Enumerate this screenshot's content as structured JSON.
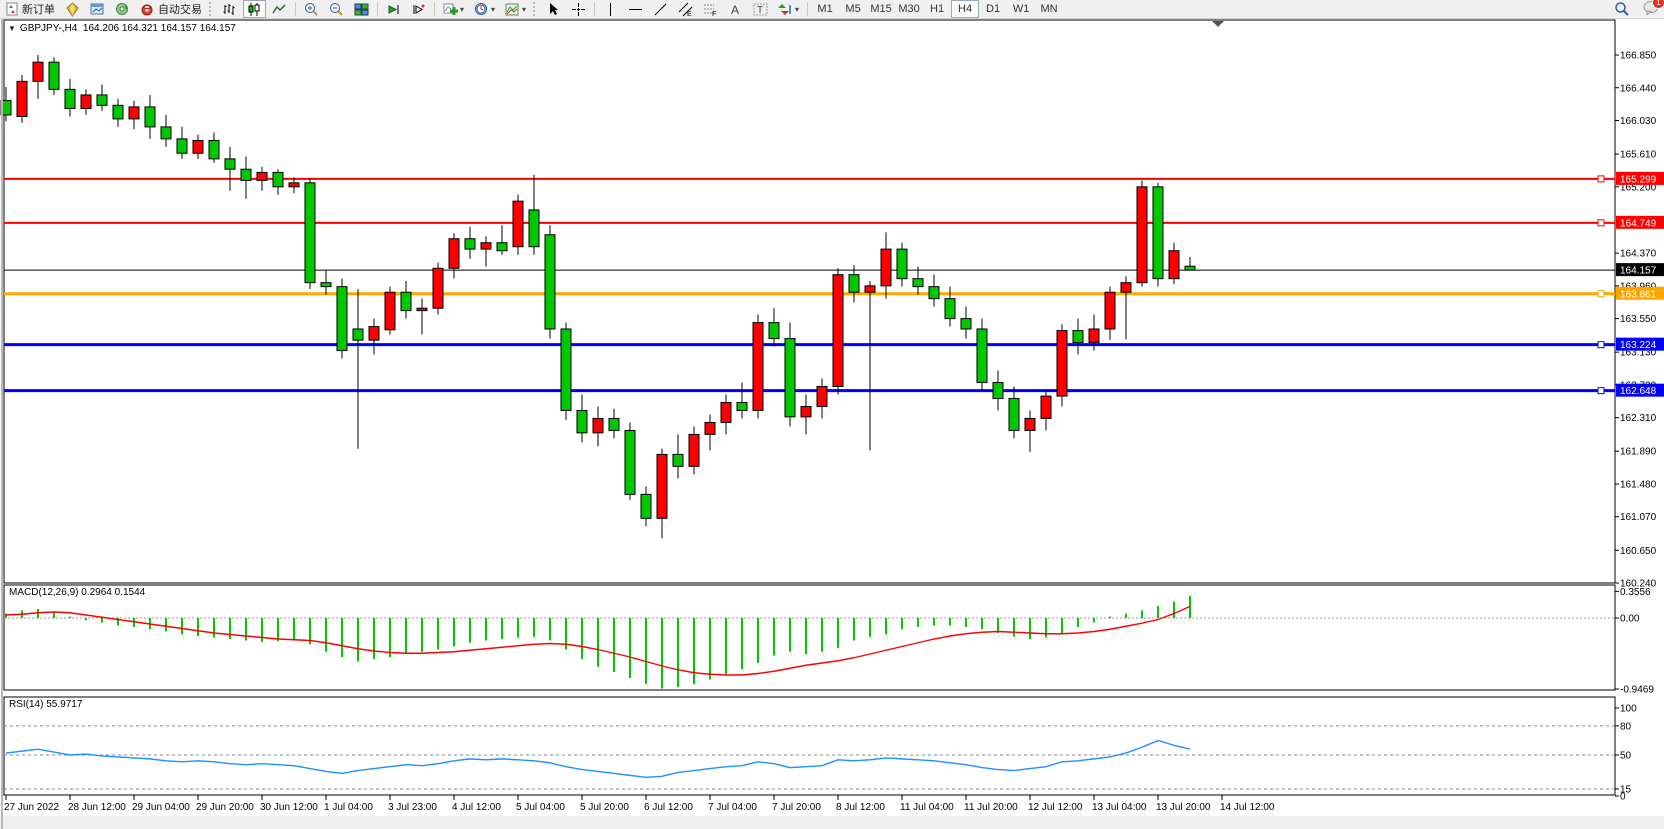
{
  "toolbar": {
    "new_order": "新订单",
    "autotrading": "自动交易",
    "timeframes": [
      "M1",
      "M5",
      "M15",
      "M30",
      "H1",
      "H4",
      "D1",
      "W1",
      "MN"
    ],
    "active_timeframe": "H4",
    "chat_badge": "1"
  },
  "chart": {
    "symbol_line": "GBPJPY-,H4",
    "ohlc_line": "164.206 164.321 164.157 164.157"
  },
  "chart_data": {
    "type": "candlestick",
    "symbol": "GBPJPY-",
    "timeframe": "H4",
    "ohlc_current": {
      "open": 164.206,
      "high": 164.321,
      "low": 164.157,
      "close": 164.157
    },
    "colors": {
      "bull": "#ff0000",
      "bear": "#00c800",
      "wick": "#000000",
      "macd_histogram": "#00c800",
      "macd_signal": "#ff0000",
      "rsi_line": "#1e90ff"
    },
    "price_ticks": [
      "166.850",
      "166.440",
      "166.030",
      "165.610",
      "165.200",
      "164.370",
      "163.960",
      "163.550",
      "163.130",
      "162.720",
      "162.310",
      "161.890",
      "161.480",
      "161.070",
      "160.650",
      "160.240"
    ],
    "time_labels": [
      "27 Jun 2022",
      "28 Jun 12:00",
      "29 Jun 04:00",
      "29 Jun 20:00",
      "30 Jun 12:00",
      "1 Jul 04:00",
      "3 Jul 23:00",
      "4 Jul 12:00",
      "5 Jul 04:00",
      "5 Jul 20:00",
      "6 Jul 12:00",
      "7 Jul 04:00",
      "7 Jul 20:00",
      "8 Jul 12:00",
      "11 Jul 04:00",
      "11 Jul 20:00",
      "12 Jul 12:00",
      "13 Jul 04:00",
      "13 Jul 20:00",
      "14 Jul 12:00"
    ],
    "hlines": [
      {
        "price": 165.299,
        "label": "165.299",
        "color": "#ff0000",
        "width": 2
      },
      {
        "price": 164.749,
        "label": "164.749",
        "color": "#ff0000",
        "width": 2
      },
      {
        "price": 164.157,
        "label": "164.157",
        "color": "#000000",
        "width": 1
      },
      {
        "price": 163.861,
        "label": "163.861",
        "color": "#ffa500",
        "width": 3
      },
      {
        "price": 163.224,
        "label": "163.224",
        "color": "#0000ff",
        "width": 3
      },
      {
        "price": 162.648,
        "label": "162.648",
        "color": "#0000ff",
        "width": 3
      }
    ],
    "bars": [
      [
        166.28,
        166.45,
        166.02,
        166.1
      ],
      [
        166.08,
        166.6,
        166.0,
        166.52
      ],
      [
        166.52,
        166.85,
        166.3,
        166.76
      ],
      [
        166.76,
        166.82,
        166.35,
        166.42
      ],
      [
        166.42,
        166.55,
        166.08,
        166.18
      ],
      [
        166.18,
        166.42,
        166.1,
        166.35
      ],
      [
        166.35,
        166.48,
        166.15,
        166.22
      ],
      [
        166.22,
        166.3,
        165.95,
        166.05
      ],
      [
        166.05,
        166.28,
        165.92,
        166.2
      ],
      [
        166.2,
        166.35,
        165.8,
        165.95
      ],
      [
        165.95,
        166.1,
        165.7,
        165.8
      ],
      [
        165.8,
        165.95,
        165.55,
        165.62
      ],
      [
        165.62,
        165.85,
        165.55,
        165.78
      ],
      [
        165.78,
        165.88,
        165.5,
        165.55
      ],
      [
        165.55,
        165.7,
        165.15,
        165.42
      ],
      [
        165.42,
        165.58,
        165.05,
        165.28
      ],
      [
        165.28,
        165.45,
        165.15,
        165.38
      ],
      [
        165.38,
        165.42,
        165.1,
        165.2
      ],
      [
        165.2,
        165.32,
        165.12,
        165.25
      ],
      [
        165.25,
        165.3,
        163.92,
        164.0
      ],
      [
        164.0,
        164.15,
        163.85,
        163.95
      ],
      [
        163.95,
        164.05,
        163.05,
        163.15
      ],
      [
        163.42,
        163.92,
        161.92,
        163.28
      ],
      [
        163.28,
        163.55,
        163.1,
        163.45
      ],
      [
        163.41,
        163.95,
        163.35,
        163.88
      ],
      [
        163.88,
        164.02,
        163.55,
        163.65
      ],
      [
        163.65,
        163.8,
        163.35,
        163.68
      ],
      [
        163.68,
        164.25,
        163.6,
        164.18
      ],
      [
        164.18,
        164.62,
        164.05,
        164.55
      ],
      [
        164.55,
        164.7,
        164.3,
        164.42
      ],
      [
        164.42,
        164.58,
        164.2,
        164.5
      ],
      [
        164.5,
        164.72,
        164.35,
        164.4
      ],
      [
        164.45,
        165.1,
        164.35,
        165.02
      ],
      [
        164.91,
        165.35,
        164.35,
        164.45
      ],
      [
        164.6,
        164.72,
        163.3,
        163.42
      ],
      [
        163.42,
        163.5,
        162.28,
        162.4
      ],
      [
        162.4,
        162.6,
        162.0,
        162.12
      ],
      [
        162.12,
        162.45,
        161.95,
        162.3
      ],
      [
        162.3,
        162.42,
        162.05,
        162.15
      ],
      [
        162.15,
        162.25,
        161.28,
        161.35
      ],
      [
        161.35,
        161.45,
        160.95,
        161.05
      ],
      [
        161.05,
        161.92,
        160.8,
        161.85
      ],
      [
        161.85,
        162.1,
        161.55,
        161.7
      ],
      [
        161.7,
        162.2,
        161.6,
        162.1
      ],
      [
        162.1,
        162.35,
        161.9,
        162.25
      ],
      [
        162.25,
        162.6,
        162.1,
        162.5
      ],
      [
        162.5,
        162.75,
        162.3,
        162.4
      ],
      [
        162.4,
        163.6,
        162.3,
        163.5
      ],
      [
        163.5,
        163.68,
        163.2,
        163.3
      ],
      [
        163.3,
        163.5,
        162.2,
        162.32
      ],
      [
        162.32,
        162.6,
        162.1,
        162.45
      ],
      [
        162.45,
        162.8,
        162.3,
        162.7
      ],
      [
        162.7,
        164.18,
        162.6,
        164.1
      ],
      [
        164.1,
        164.22,
        163.75,
        163.88
      ],
      [
        163.88,
        164.02,
        161.9,
        163.96
      ],
      [
        163.96,
        164.63,
        163.8,
        164.42
      ],
      [
        164.42,
        164.5,
        163.95,
        164.05
      ],
      [
        164.05,
        164.2,
        163.85,
        163.95
      ],
      [
        163.95,
        164.1,
        163.7,
        163.8
      ],
      [
        163.8,
        163.95,
        163.45,
        163.55
      ],
      [
        163.55,
        163.7,
        163.3,
        163.42
      ],
      [
        163.42,
        163.55,
        162.65,
        162.75
      ],
      [
        162.75,
        162.9,
        162.4,
        162.55
      ],
      [
        162.55,
        162.7,
        162.05,
        162.15
      ],
      [
        162.15,
        162.4,
        161.88,
        162.3
      ],
      [
        162.3,
        162.65,
        162.15,
        162.58
      ],
      [
        162.58,
        163.48,
        162.45,
        163.4
      ],
      [
        163.4,
        163.55,
        163.1,
        163.25
      ],
      [
        163.25,
        163.6,
        163.15,
        163.42
      ],
      [
        163.42,
        163.95,
        163.28,
        163.88
      ],
      [
        163.88,
        164.08,
        163.29,
        164.0
      ],
      [
        164.0,
        165.28,
        163.95,
        165.2
      ],
      [
        165.2,
        165.25,
        163.95,
        164.05
      ],
      [
        164.05,
        164.5,
        163.98,
        164.4
      ],
      [
        164.206,
        164.321,
        164.157,
        164.157
      ]
    ],
    "indicators": {
      "macd": {
        "label": "MACD(12,26,9)",
        "values_label": "0.2964 0.1544",
        "main_value": 0.2964,
        "signal_value": 0.1544,
        "scale": [
          "0.3556",
          "0.00",
          "-0.9469"
        ],
        "histogram": [
          0.06,
          0.1,
          0.12,
          0.08,
          0.02,
          -0.03,
          -0.06,
          -0.1,
          -0.12,
          -0.15,
          -0.18,
          -0.22,
          -0.24,
          -0.26,
          -0.28,
          -0.3,
          -0.32,
          -0.31,
          -0.3,
          -0.35,
          -0.45,
          -0.52,
          -0.58,
          -0.55,
          -0.52,
          -0.48,
          -0.45,
          -0.42,
          -0.38,
          -0.33,
          -0.3,
          -0.28,
          -0.26,
          -0.25,
          -0.3,
          -0.42,
          -0.55,
          -0.65,
          -0.72,
          -0.8,
          -0.88,
          -0.94,
          -0.92,
          -0.88,
          -0.82,
          -0.75,
          -0.68,
          -0.6,
          -0.5,
          -0.45,
          -0.48,
          -0.45,
          -0.4,
          -0.3,
          -0.25,
          -0.22,
          -0.15,
          -0.12,
          -0.1,
          -0.1,
          -0.12,
          -0.15,
          -0.2,
          -0.25,
          -0.28,
          -0.26,
          -0.2,
          -0.12,
          -0.06,
          0.02,
          0.06,
          0.1,
          0.16,
          0.22,
          0.2964
        ],
        "signal": [
          0.04,
          0.05,
          0.07,
          0.08,
          0.07,
          0.04,
          0.01,
          -0.02,
          -0.05,
          -0.08,
          -0.11,
          -0.14,
          -0.17,
          -0.2,
          -0.22,
          -0.24,
          -0.26,
          -0.28,
          -0.29,
          -0.3,
          -0.33,
          -0.37,
          -0.41,
          -0.44,
          -0.46,
          -0.47,
          -0.47,
          -0.46,
          -0.45,
          -0.43,
          -0.41,
          -0.39,
          -0.37,
          -0.35,
          -0.34,
          -0.35,
          -0.38,
          -0.42,
          -0.47,
          -0.52,
          -0.58,
          -0.64,
          -0.69,
          -0.73,
          -0.75,
          -0.76,
          -0.76,
          -0.74,
          -0.71,
          -0.67,
          -0.63,
          -0.6,
          -0.57,
          -0.53,
          -0.48,
          -0.43,
          -0.38,
          -0.33,
          -0.28,
          -0.24,
          -0.21,
          -0.19,
          -0.18,
          -0.19,
          -0.2,
          -0.21,
          -0.21,
          -0.2,
          -0.18,
          -0.15,
          -0.11,
          -0.07,
          -0.02,
          0.06,
          0.1544
        ]
      },
      "rsi": {
        "label": "RSI(14)",
        "value_label": "55.9717",
        "current": 55.9717,
        "levels": [
          "100",
          "80",
          "50",
          "15",
          "0"
        ],
        "values": [
          52,
          54,
          56,
          53,
          50,
          51,
          49,
          48,
          47,
          46,
          44,
          43,
          44,
          43,
          41,
          40,
          41,
          40,
          39,
          36,
          33,
          31,
          34,
          36,
          38,
          40,
          39,
          41,
          44,
          46,
          45,
          46,
          45,
          44,
          42,
          38,
          35,
          33,
          31,
          29,
          27,
          28,
          32,
          34,
          36,
          38,
          39,
          43,
          41,
          37,
          38,
          39,
          45,
          44,
          45,
          47,
          46,
          45,
          44,
          42,
          40,
          37,
          35,
          34,
          36,
          38,
          43,
          44,
          46,
          48,
          52,
          58,
          65,
          60,
          55.97
        ]
      }
    }
  }
}
